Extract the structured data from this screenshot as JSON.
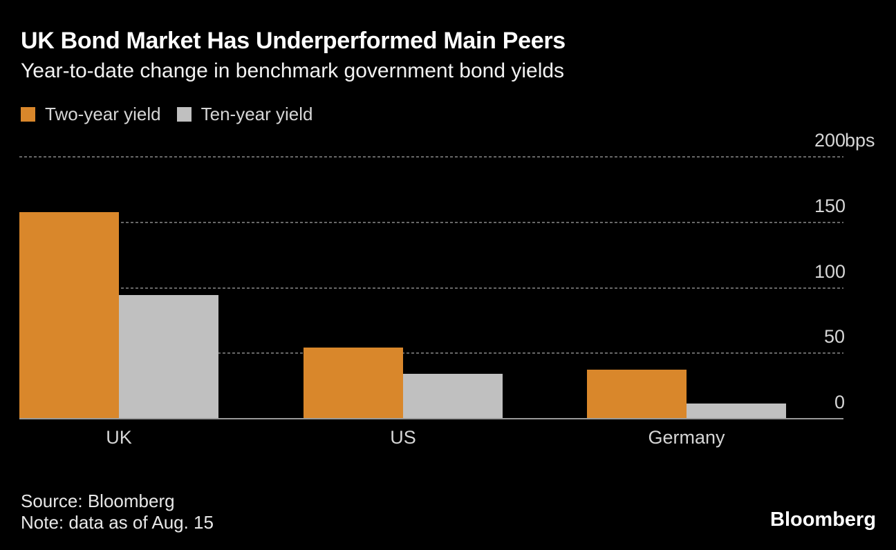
{
  "chart_data": {
    "type": "bar",
    "title": "UK Bond Market Has Underperformed Main Peers",
    "subtitle": "Year-to-date change in benchmark government bond yields",
    "categories": [
      "UK",
      "US",
      "Germany"
    ],
    "series": [
      {
        "name": "Two-year yield",
        "color": "#d9872b",
        "values": [
          157,
          54,
          37
        ]
      },
      {
        "name": "Ten-year yield",
        "color": "#c0c0c0",
        "values": [
          94,
          34,
          11
        ]
      }
    ],
    "unit": "bps",
    "xlabel": "",
    "ylabel": "",
    "ylim": [
      0,
      200
    ],
    "yticks": [
      {
        "num": "200",
        "suffix": "bps"
      },
      {
        "num": "150",
        "suffix": ""
      },
      {
        "num": "100",
        "suffix": ""
      },
      {
        "num": "50",
        "suffix": ""
      },
      {
        "num": "0",
        "suffix": ""
      }
    ],
    "grid": "horizontal-dotted",
    "legend_position": "top-left"
  },
  "legend": [
    {
      "label": "Two-year yield",
      "color": "#d9872b"
    },
    {
      "label": "Ten-year yield",
      "color": "#c0c0c0"
    }
  ],
  "footer": {
    "source": "Source: Bloomberg",
    "note": "Note: data as of Aug. 15",
    "brand": "Bloomberg"
  },
  "colors": {
    "background": "#000000",
    "title": "#ffffff",
    "text": "#d6d6d6",
    "gridline": "#686868",
    "axis": "#9a9a9a"
  }
}
